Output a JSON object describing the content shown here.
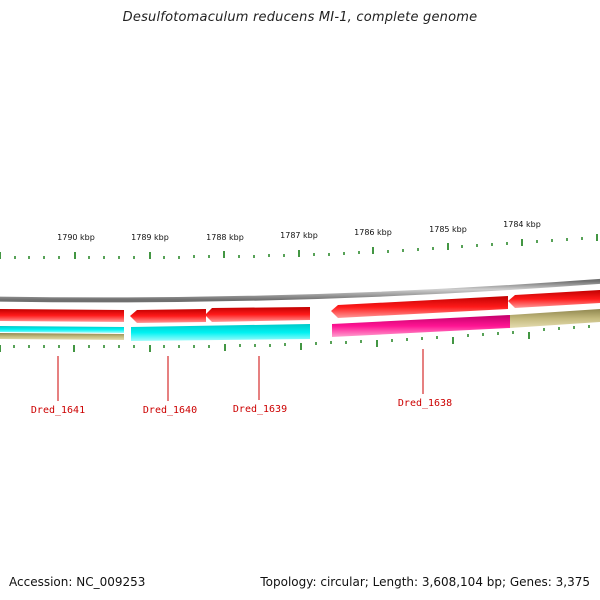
{
  "title": "Desulfotomaculum reducens MI-1, complete genome",
  "accession_text": "Accession: NC_009253",
  "stats_text": "Topology: circular; Length: 3,608,104 bp; Genes: 3,375",
  "colors": {
    "backbone": "#8a8a8a",
    "forward_cds": "#ff0000",
    "cog_cyan": "#00f0f0",
    "cog_magenta": "#ff1493",
    "cog_khaki": "#b8ae72",
    "tick": "#2e8b2e",
    "gene_label": "#cc0000"
  },
  "scale_labels": [
    "1790 kbp",
    "1789 kbp",
    "1788 kbp",
    "1787 kbp",
    "1786 kbp",
    "1785 kbp",
    "1784 kbp"
  ],
  "genes": [
    {
      "id": "Dred_1641"
    },
    {
      "id": "Dred_1640"
    },
    {
      "id": "Dred_1639"
    },
    {
      "id": "Dred_1638"
    }
  ]
}
